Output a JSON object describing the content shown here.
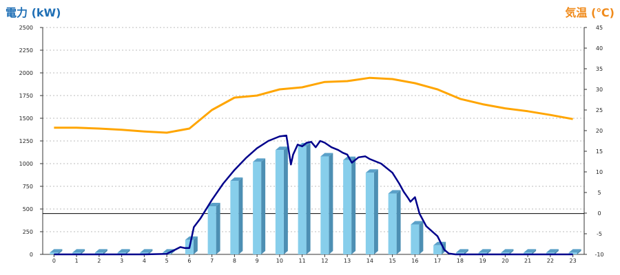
{
  "chart_data": {
    "type": "bar",
    "title_left": "電力 (kW)",
    "title_right": "気温 (℃)",
    "categories": [
      "0",
      "1",
      "2",
      "3",
      "4",
      "5",
      "6",
      "7",
      "8",
      "9",
      "10",
      "11",
      "12",
      "13",
      "14",
      "15",
      "16",
      "17",
      "18",
      "19",
      "20",
      "21",
      "22",
      "23"
    ],
    "y_left": {
      "min": 0,
      "max": 2500,
      "ticks": [
        "0",
        "250",
        "500",
        "750",
        "1000",
        "1250",
        "1500",
        "1750",
        "2000",
        "2250",
        "2500"
      ]
    },
    "y_right": {
      "min": -10,
      "max": 45,
      "ticks": [
        "-10",
        "-5",
        "0",
        "5",
        "10",
        "15",
        "20",
        "25",
        "30",
        "35",
        "40",
        "45"
      ]
    },
    "reference_line_left": 450,
    "series": [
      {
        "kind": "bar",
        "axis": "left",
        "color": "#87ceeb",
        "values": [
          20,
          20,
          20,
          20,
          20,
          20,
          160,
          530,
          810,
          1020,
          1150,
          1190,
          1080,
          1040,
          900,
          670,
          330,
          100,
          20,
          20,
          20,
          20,
          20,
          20
        ]
      },
      {
        "kind": "line",
        "axis": "left",
        "color": "#00008b",
        "x": [
          0,
          1,
          2,
          3,
          4,
          5,
          5.6,
          5.8,
          6.0,
          6.2,
          6.5,
          7.0,
          7.5,
          8.0,
          8.5,
          9.0,
          9.5,
          10.0,
          10.3,
          10.5,
          10.6,
          10.8,
          11.0,
          11.2,
          11.4,
          11.6,
          11.8,
          12.0,
          12.3,
          12.6,
          12.8,
          13.0,
          13.2,
          13.5,
          13.8,
          14.0,
          14.2,
          14.5,
          15.0,
          15.3,
          15.5,
          15.7,
          15.8,
          16.0,
          16.2,
          16.5,
          17.0,
          17.3,
          17.5,
          17.8,
          18,
          19,
          20,
          21,
          22,
          23
        ],
        "values": [
          0,
          0,
          0,
          0,
          0,
          5,
          80,
          70,
          70,
          300,
          400,
          600,
          780,
          930,
          1060,
          1170,
          1250,
          1300,
          1310,
          990,
          1100,
          1210,
          1190,
          1230,
          1240,
          1180,
          1250,
          1230,
          1180,
          1150,
          1120,
          1100,
          1010,
          1070,
          1080,
          1050,
          1030,
          1000,
          900,
          780,
          690,
          620,
          580,
          630,
          450,
          310,
          200,
          50,
          10,
          0,
          0,
          0,
          0,
          0,
          0,
          0
        ]
      },
      {
        "kind": "line",
        "axis": "right",
        "color": "#ffa500",
        "x": [
          0,
          1,
          2,
          3,
          4,
          5,
          6,
          7,
          8,
          9,
          10,
          11,
          12,
          13,
          14,
          15,
          16,
          17,
          18,
          19,
          20,
          21,
          22,
          23
        ],
        "values": [
          20.7,
          20.7,
          20.5,
          20.2,
          19.8,
          19.5,
          20.5,
          25,
          28,
          28.5,
          30,
          30.5,
          31.8,
          32,
          32.8,
          32.5,
          31.5,
          30,
          27.7,
          26.4,
          25.4,
          24.7,
          23.8,
          22.8
        ]
      }
    ]
  }
}
